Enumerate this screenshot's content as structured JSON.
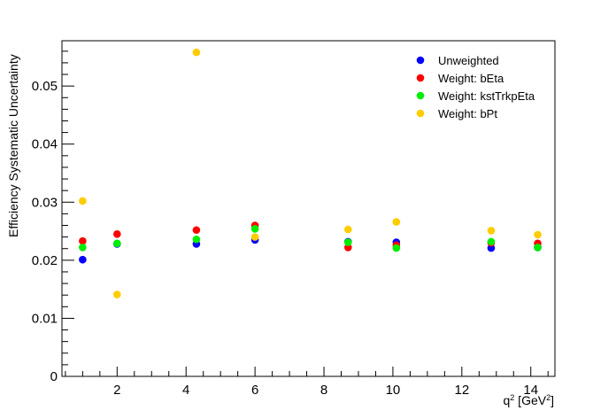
{
  "chart_data": {
    "type": "scatter",
    "title": "",
    "xlabel": {
      "base": "q",
      "sup": "2",
      "mid": " [GeV",
      "sup2": "2",
      "end": "]"
    },
    "ylabel": "Efficiency Systematic Uncertainty",
    "xlim": [
      0.4,
      14.7
    ],
    "ylim": [
      0,
      0.0578
    ],
    "x_ticks": [
      2,
      4,
      6,
      8,
      10,
      12,
      14
    ],
    "x_tick_labels": [
      "2",
      "4",
      "6",
      "8",
      "10",
      "12",
      "14"
    ],
    "y_ticks": [
      0,
      0.01,
      0.02,
      0.03,
      0.04,
      0.05
    ],
    "y_tick_labels": [
      "0",
      "0.01",
      "0.02",
      "0.03",
      "0.04",
      "0.05"
    ],
    "grid": false,
    "legend_position": "top-right",
    "x": [
      1.0,
      2.0,
      4.3,
      6.0,
      8.7,
      10.1,
      12.85,
      14.2
    ],
    "series": [
      {
        "name": "Unweighted",
        "color": "#0000ff",
        "values": [
          0.0201,
          0.0228,
          0.0228,
          0.0235,
          0.0232,
          0.0231,
          0.0221,
          0.0222
        ]
      },
      {
        "name": "Weight: bEta",
        "color": "#ff0000",
        "values": [
          0.0233,
          0.0245,
          0.0252,
          0.026,
          0.0222,
          0.0226,
          0.023,
          0.0229
        ]
      },
      {
        "name": "Weight: kstTrkpEta",
        "color": "#00ee00",
        "values": [
          0.0222,
          0.0229,
          0.0236,
          0.0254,
          0.0231,
          0.0221,
          0.0232,
          0.0222
        ]
      },
      {
        "name": "Weight: bPt",
        "color": "#ffcc00",
        "values": [
          0.0302,
          0.0141,
          0.0558,
          0.024,
          0.0253,
          0.0266,
          0.0251,
          0.0244
        ]
      }
    ]
  }
}
